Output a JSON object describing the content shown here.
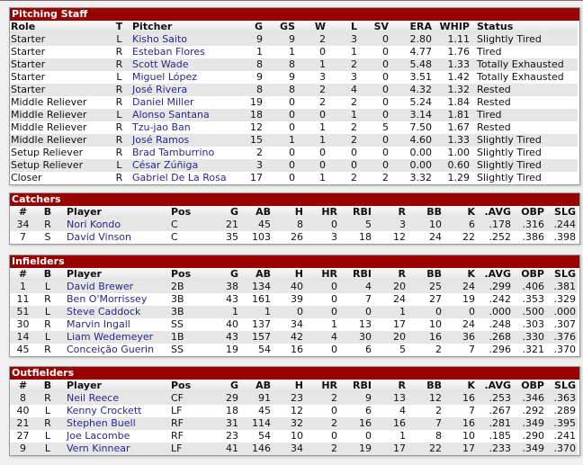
{
  "pitching": {
    "title": "Pitching Staff",
    "headers": [
      "Role",
      "T",
      "Pitcher",
      "G",
      "GS",
      "W",
      "L",
      "SV",
      "ERA",
      "WHIP",
      "Status"
    ],
    "rows": [
      [
        "Starter",
        "L",
        "Kisho Saito",
        "9",
        "9",
        "2",
        "3",
        "0",
        "2.80",
        "1.11",
        "Slightly Tired"
      ],
      [
        "Starter",
        "R",
        "Esteban Flores",
        "1",
        "1",
        "0",
        "1",
        "0",
        "4.77",
        "1.76",
        "Tired"
      ],
      [
        "Starter",
        "R",
        "Scott Wade",
        "8",
        "8",
        "1",
        "2",
        "0",
        "5.48",
        "1.33",
        "Totally Exhausted"
      ],
      [
        "Starter",
        "L",
        "Miguel López",
        "9",
        "9",
        "3",
        "3",
        "0",
        "3.51",
        "1.42",
        "Totally Exhausted"
      ],
      [
        "Starter",
        "R",
        "José Rivera",
        "8",
        "8",
        "2",
        "4",
        "0",
        "4.32",
        "1.32",
        "Rested"
      ],
      [
        "Middle Reliever",
        "R",
        "Daniel Miller",
        "19",
        "0",
        "2",
        "2",
        "0",
        "5.24",
        "1.84",
        "Rested"
      ],
      [
        "Middle Reliever",
        "L",
        "Alonso Santana",
        "18",
        "0",
        "0",
        "1",
        "0",
        "3.14",
        "1.81",
        "Tired"
      ],
      [
        "Middle Reliever",
        "R",
        "Tzu-jao Ban",
        "12",
        "0",
        "1",
        "2",
        "5",
        "7.50",
        "1.67",
        "Rested"
      ],
      [
        "Middle Reliever",
        "R",
        "José Ramos",
        "15",
        "1",
        "1",
        "2",
        "0",
        "4.60",
        "1.33",
        "Slightly Tired"
      ],
      [
        "Setup Reliever",
        "R",
        "Brad Tamburrino",
        "2",
        "0",
        "0",
        "0",
        "0",
        "0.00",
        "1.00",
        "Slightly Tired"
      ],
      [
        "Setup Reliever",
        "L",
        "César Zúñiga",
        "3",
        "0",
        "0",
        "0",
        "0",
        "0.00",
        "0.60",
        "Slightly Tired"
      ],
      [
        "Closer",
        "R",
        "Gabriel De La Rosa",
        "17",
        "0",
        "1",
        "2",
        "2",
        "3.32",
        "1.29",
        "Slightly Tired"
      ]
    ]
  },
  "batting_headers": [
    "#",
    "B",
    "Player",
    "Pos",
    "G",
    "AB",
    "H",
    "HR",
    "RBI",
    "R",
    "BB",
    "K",
    ".AVG",
    "OBP",
    "SLG"
  ],
  "catchers": {
    "title": "Catchers",
    "rows": [
      [
        "34",
        "R",
        "Nori Kondo",
        "C",
        "21",
        "45",
        "8",
        "0",
        "5",
        "3",
        "10",
        "6",
        ".178",
        ".316",
        ".244"
      ],
      [
        "7",
        "S",
        "David Vinson",
        "C",
        "35",
        "103",
        "26",
        "3",
        "18",
        "12",
        "24",
        "22",
        ".252",
        ".386",
        ".398"
      ]
    ]
  },
  "infielders": {
    "title": "Infielders",
    "rows": [
      [
        "1",
        "L",
        "David Brewer",
        "2B",
        "38",
        "134",
        "40",
        "0",
        "4",
        "20",
        "25",
        "24",
        ".299",
        ".406",
        ".381"
      ],
      [
        "11",
        "R",
        "Ben O'Morrissey",
        "3B",
        "43",
        "161",
        "39",
        "0",
        "7",
        "24",
        "27",
        "19",
        ".242",
        ".353",
        ".329"
      ],
      [
        "51",
        "L",
        "Steve Caddock",
        "3B",
        "1",
        "1",
        "0",
        "0",
        "0",
        "1",
        "0",
        "0",
        ".000",
        ".500",
        ".000"
      ],
      [
        "30",
        "R",
        "Marvin Ingall",
        "SS",
        "40",
        "137",
        "34",
        "1",
        "13",
        "17",
        "10",
        "24",
        ".248",
        ".303",
        ".307"
      ],
      [
        "14",
        "L",
        "Liam Wedemeyer",
        "1B",
        "43",
        "157",
        "42",
        "4",
        "30",
        "20",
        "16",
        "36",
        ".268",
        ".330",
        ".376"
      ],
      [
        "45",
        "R",
        "Conceição Guerin",
        "SS",
        "19",
        "54",
        "16",
        "0",
        "6",
        "5",
        "2",
        "7",
        ".296",
        ".321",
        ".370"
      ]
    ]
  },
  "outfielders": {
    "title": "Outfielders",
    "rows": [
      [
        "8",
        "R",
        "Neil Reece",
        "CF",
        "29",
        "91",
        "23",
        "2",
        "9",
        "13",
        "12",
        "16",
        ".253",
        ".346",
        ".363"
      ],
      [
        "40",
        "L",
        "Kenny Crockett",
        "LF",
        "18",
        "45",
        "12",
        "0",
        "6",
        "4",
        "2",
        "7",
        ".267",
        ".292",
        ".289"
      ],
      [
        "21",
        "R",
        "Stephen Buell",
        "RF",
        "31",
        "114",
        "32",
        "2",
        "16",
        "16",
        "7",
        "16",
        ".281",
        ".349",
        ".395"
      ],
      [
        "27",
        "L",
        "Joe Lacombe",
        "RF",
        "23",
        "54",
        "10",
        "0",
        "0",
        "1",
        "8",
        "10",
        ".185",
        ".290",
        ".241"
      ],
      [
        "9",
        "L",
        "Vern Kinnear",
        "LF",
        "41",
        "146",
        "34",
        "2",
        "19",
        "17",
        "22",
        "17",
        ".233",
        ".349",
        ".370"
      ]
    ]
  },
  "colors": {
    "header_bg": "#990000",
    "player_link": "#27288a",
    "stripe": "#e6e6e6"
  }
}
